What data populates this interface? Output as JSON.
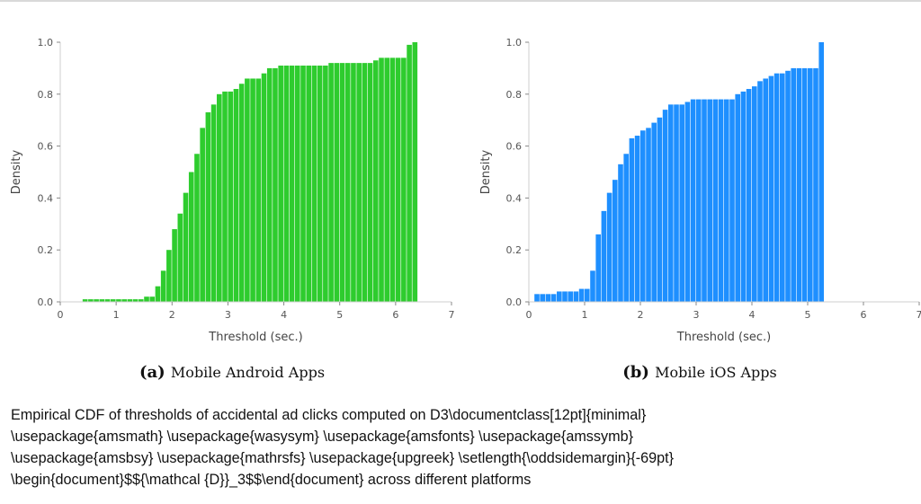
{
  "caption": "Empirical CDF of thresholds of accidental ad clicks computed on D3\\documentclass[12pt]{minimal}\n\\usepackage{amsmath} \\usepackage{wasysym} \\usepackage{amsfonts} \\usepackage{amssymb}\n\\usepackage{amsbsy} \\usepackage{mathrsfs} \\usepackage{upgreek} \\setlength{\\oddsidemargin}{-69pt}\n\\begin{document}$${\\mathcal {D}}_3$$\\end{document} across different platforms",
  "chart_data": [
    {
      "type": "bar",
      "subcaption_label": "(a)",
      "subcaption_text": "Mobile Android Apps",
      "xlabel": "Threshold (sec.)",
      "ylabel": "Density",
      "xlim": [
        0,
        7
      ],
      "ylim": [
        0,
        1.0
      ],
      "xticks": [
        "0",
        "1",
        "2",
        "3",
        "4",
        "5",
        "6",
        "7"
      ],
      "yticks": [
        "0.0",
        "0.2",
        "0.4",
        "0.6",
        "0.8",
        "1.0"
      ],
      "grid": false,
      "color": "#2ecc2e",
      "bin_start": 0.4,
      "bin_width": 0.1,
      "values": [
        0.01,
        0.01,
        0.01,
        0.01,
        0.01,
        0.01,
        0.01,
        0.01,
        0.01,
        0.01,
        0.01,
        0.02,
        0.02,
        0.06,
        0.12,
        0.2,
        0.28,
        0.34,
        0.42,
        0.5,
        0.57,
        0.67,
        0.73,
        0.76,
        0.8,
        0.81,
        0.81,
        0.82,
        0.84,
        0.86,
        0.86,
        0.86,
        0.88,
        0.9,
        0.9,
        0.91,
        0.91,
        0.91,
        0.91,
        0.91,
        0.91,
        0.91,
        0.91,
        0.91,
        0.92,
        0.92,
        0.92,
        0.92,
        0.92,
        0.92,
        0.92,
        0.92,
        0.93,
        0.94,
        0.94,
        0.94,
        0.94,
        0.94,
        0.99,
        1.0
      ]
    },
    {
      "type": "bar",
      "subcaption_label": "(b)",
      "subcaption_text": "Mobile iOS Apps",
      "xlabel": "Threshold (sec.)",
      "ylabel": "Density",
      "xlim": [
        0,
        7
      ],
      "ylim": [
        0,
        1.0
      ],
      "xticks": [
        "0",
        "1",
        "2",
        "3",
        "4",
        "5",
        "6",
        "7"
      ],
      "yticks": [
        "0.0",
        "0.2",
        "0.4",
        "0.6",
        "0.8",
        "1.0"
      ],
      "grid": false,
      "color": "#1e8fff",
      "bin_start": 0.1,
      "bin_width": 0.1,
      "values": [
        0.03,
        0.03,
        0.03,
        0.03,
        0.04,
        0.04,
        0.04,
        0.04,
        0.05,
        0.05,
        0.12,
        0.26,
        0.35,
        0.42,
        0.47,
        0.53,
        0.57,
        0.63,
        0.64,
        0.66,
        0.67,
        0.69,
        0.71,
        0.74,
        0.76,
        0.76,
        0.76,
        0.77,
        0.78,
        0.78,
        0.78,
        0.78,
        0.78,
        0.78,
        0.78,
        0.78,
        0.8,
        0.81,
        0.82,
        0.83,
        0.85,
        0.86,
        0.87,
        0.88,
        0.88,
        0.89,
        0.9,
        0.9,
        0.9,
        0.9,
        0.9,
        1.0
      ]
    }
  ]
}
